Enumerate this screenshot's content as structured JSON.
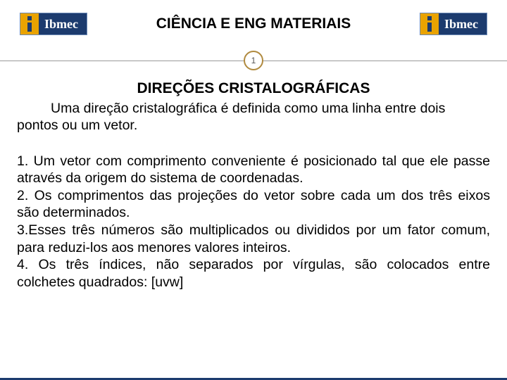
{
  "header": {
    "logo_text": "Ibmec",
    "course_title": "CIÊNCIA E ENG MATERIAIS"
  },
  "page_number": "1",
  "section_title": "DIREÇÕES CRISTALOGRÁFICAS",
  "intro": "Uma direção cristalográfica é definida como uma linha entre dois pontos ou um vetor.",
  "steps": [
    "1. Um vetor com comprimento conveniente é posicionado tal que ele passe através da origem do sistema de coordenadas.",
    "2. Os comprimentos das projeções do vetor sobre cada um dos três eixos são determinados.",
    "3.Esses três números são multiplicados ou divididos por um fator comum, para reduzi-los aos menores valores inteiros.",
    "4. Os três índices, não separados por vírgulas, são colocados entre colchetes quadrados: [uvw]"
  ],
  "colors": {
    "brand_blue": "#1c3b6e",
    "brand_gold": "#e9a300",
    "circle_border": "#b08a3f",
    "divider": "#999999",
    "text": "#000000",
    "background": "#ffffff"
  },
  "typography": {
    "title_size_pt": 16,
    "body_size_pt": 15,
    "font_family": "Arial"
  }
}
